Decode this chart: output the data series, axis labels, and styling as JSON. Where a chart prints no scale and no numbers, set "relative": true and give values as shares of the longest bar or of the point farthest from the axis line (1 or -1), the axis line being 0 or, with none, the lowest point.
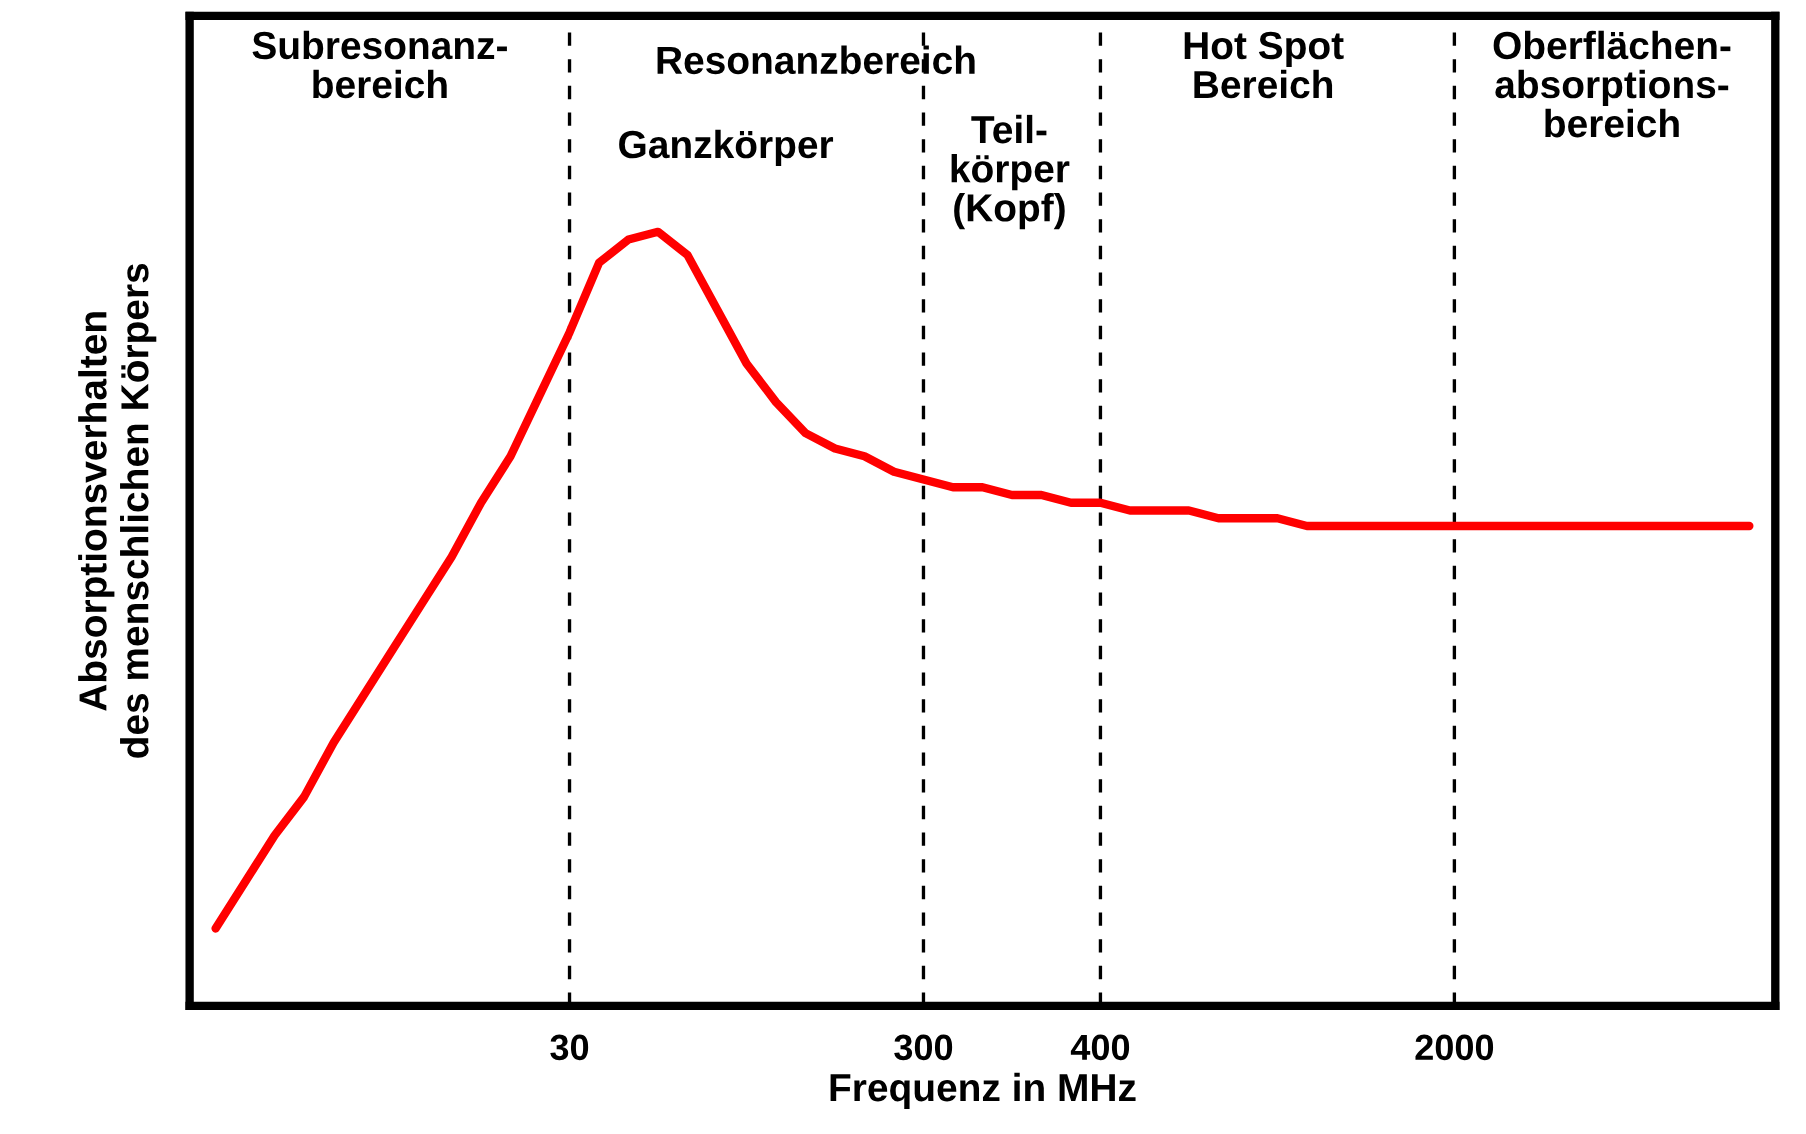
{
  "chart_data": {
    "type": "line",
    "relative": true,
    "xlabel": "Frequenz in MHz",
    "ylabel": "Absorptionsverhalten\ndes menschlichen Körpers",
    "categories": [
      null,
      null,
      null,
      null,
      null,
      null,
      null,
      null,
      null,
      null,
      null,
      null,
      "30",
      null,
      null,
      null,
      null,
      null,
      null,
      null,
      null,
      null,
      null,
      null,
      "300",
      null,
      null,
      null,
      null,
      null,
      "400",
      null,
      null,
      null,
      null,
      null,
      null,
      null,
      null,
      null,
      null,
      null,
      "2000",
      null,
      null,
      null,
      null,
      null,
      null,
      null,
      null,
      null,
      null
    ],
    "series": [
      {
        "color": "#ff0000",
        "values": [
          0.1,
          0.16,
          0.22,
          0.27,
          0.34,
          0.4,
          0.46,
          0.52,
          0.58,
          0.65,
          0.71,
          0.79,
          0.87,
          0.96,
          0.99,
          1.0,
          0.97,
          0.9,
          0.83,
          0.78,
          0.74,
          0.72,
          0.71,
          0.69,
          0.68,
          0.67,
          0.67,
          0.66,
          0.66,
          0.65,
          0.65,
          0.64,
          0.64,
          0.64,
          0.63,
          0.63,
          0.63,
          0.62,
          0.62,
          0.62,
          0.62,
          0.62,
          0.62,
          0.62,
          0.62,
          0.62,
          0.62,
          0.62,
          0.62,
          0.62,
          0.62,
          0.62,
          0.62
        ]
      }
    ],
    "ref_lines": [
      {
        "axis": "x",
        "value": "30",
        "color": "#000000",
        "line_style": "dashed"
      },
      {
        "axis": "x",
        "value": "300",
        "color": "#000000",
        "line_style": "dashed"
      },
      {
        "axis": "x",
        "value": "400",
        "color": "#000000",
        "line_style": "dashed"
      },
      {
        "axis": "x",
        "value": "2000",
        "color": "#000000",
        "line_style": "dashed"
      }
    ],
    "annotations": [
      "Subresonanz-\nbereich",
      "Resonanzbereich",
      "Ganzkörper",
      "Teil-\nkörper\n(Kopf)",
      "Hot Spot\nBereich",
      "Oberflächen-\nabsorptions-\nbereich"
    ],
    "grid": false,
    "legend": false,
    "marker": "none",
    "line_style": "solid"
  }
}
